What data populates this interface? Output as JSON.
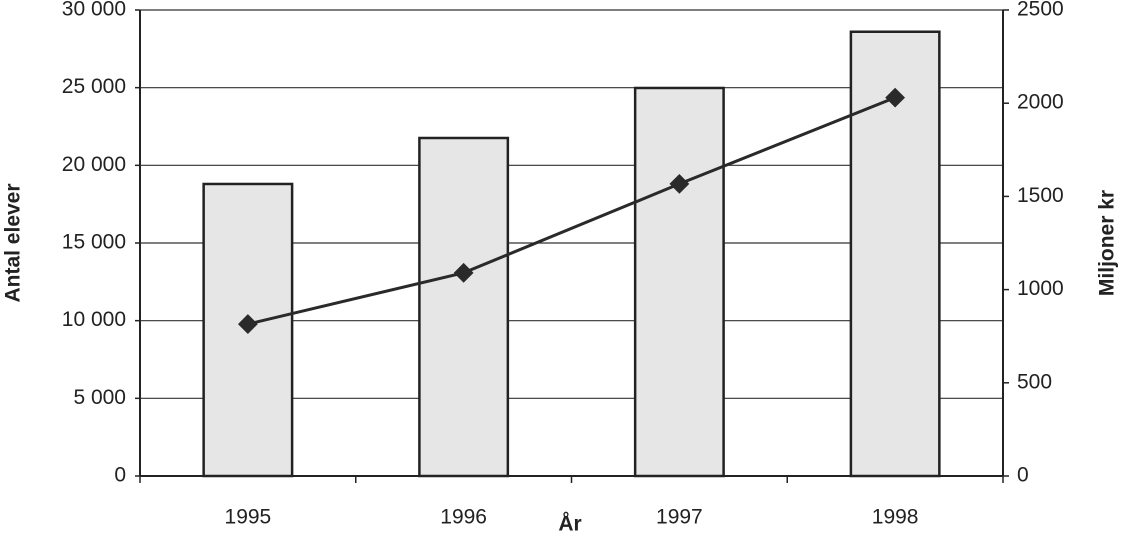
{
  "chart_data": {
    "type": "bar",
    "x_label": "År",
    "y_label": "Antal elever",
    "y2_label": "Miljoner kr",
    "categories": [
      "1995",
      "1996",
      "1997",
      "1998"
    ],
    "series": [
      {
        "type": "bar",
        "color": "#e6e6e6",
        "values": [
          18800,
          21760,
          24980,
          28600
        ]
      },
      {
        "type": "line",
        "color": "#2a2a2a",
        "axis": "y2",
        "values": [
          815,
          1090,
          1567,
          2030
        ]
      }
    ],
    "ylim": [
      0,
      30000
    ],
    "yticks": [
      0,
      {
        "value": 5000,
        "label": "5 000"
      },
      {
        "value": 10000,
        "label": "10 000"
      },
      {
        "value": 15000,
        "label": "15 000"
      },
      {
        "value": 20000,
        "label": "20 000"
      },
      {
        "value": 25000,
        "label": "25 000"
      },
      {
        "value": 30000,
        "label": "30 000"
      }
    ],
    "y2lim": [
      0,
      2500
    ],
    "y2ticks": [
      0,
      500,
      1000,
      1500,
      2000,
      2500
    ],
    "grid": true
  }
}
